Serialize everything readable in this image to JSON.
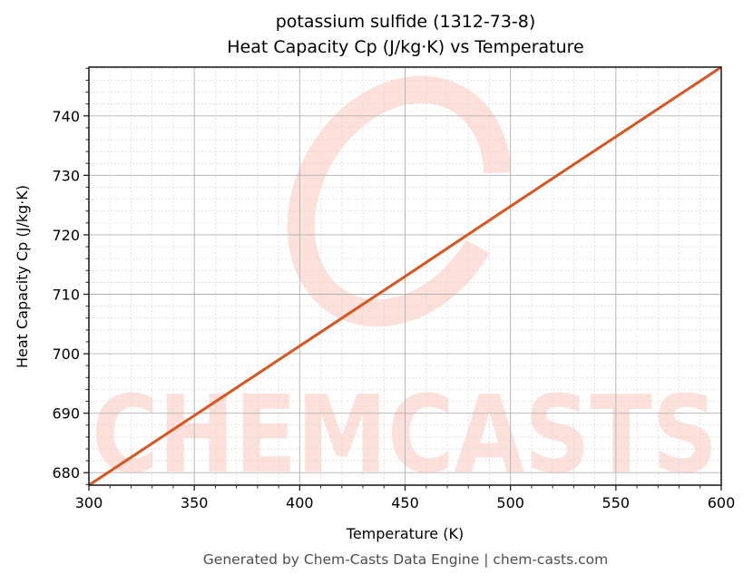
{
  "header": {
    "title_line1": "potassium sulfide (1312-73-8)",
    "title_line2": "Heat Capacity Cp (J/kg·K) vs Temperature"
  },
  "axes": {
    "xlabel": "Temperature (K)",
    "ylabel": "Heat Capacity Cp (J/kg·K)",
    "x_ticks": [
      "300",
      "350",
      "400",
      "450",
      "500",
      "550",
      "600"
    ],
    "y_ticks": [
      "680",
      "690",
      "700",
      "710",
      "720",
      "730",
      "740"
    ]
  },
  "watermark": {
    "text": "CHEMCASTS"
  },
  "footer": {
    "text": "Generated by Chem-Casts Data Engine | chem-casts.com"
  },
  "colors": {
    "line": "#d9541e",
    "watermark": "#fde0da",
    "major_grid": "#b0b0b0",
    "minor_grid": "#d8d8d8"
  },
  "chart_data": {
    "type": "line",
    "title": "potassium sulfide (1312-73-8)\nHeat Capacity Cp (J/kg·K) vs Temperature",
    "xlabel": "Temperature (K)",
    "ylabel": "Heat Capacity Cp (J/kg·K)",
    "xlim": [
      300,
      600
    ],
    "ylim": [
      677.9,
      748.2
    ],
    "grid": true,
    "legend": null,
    "series": [
      {
        "name": "Heat Capacity Cp",
        "x": [
          300,
          350,
          400,
          450,
          500,
          550,
          600
        ],
        "y": [
          677.9,
          689.6,
          701.3,
          713.0,
          724.8,
          736.5,
          748.2
        ]
      }
    ]
  }
}
